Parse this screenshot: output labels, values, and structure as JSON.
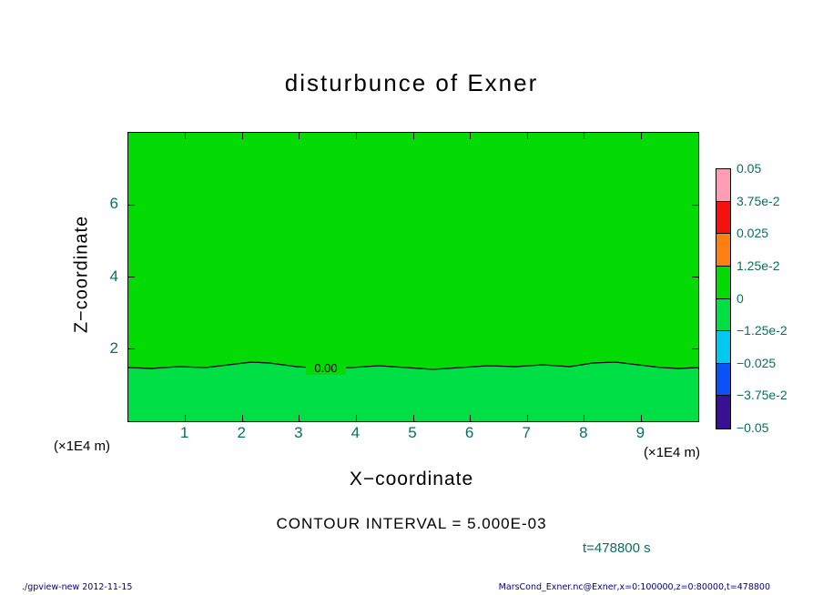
{
  "title": "disturbunce of Exner",
  "plot": {
    "x_axis": {
      "label": "X−coordinate",
      "unit_left": "(×1E4 m)",
      "unit_right": "(×1E4 m)",
      "ticks": [
        "1",
        "2",
        "3",
        "4",
        "5",
        "6",
        "7",
        "8",
        "9"
      ]
    },
    "y_axis": {
      "label": "Z−coordinate",
      "ticks": [
        "2",
        "4",
        "6"
      ]
    },
    "contour_label": "0.00",
    "colors": {
      "upper_region": "#04da04",
      "lower_region": "#00df45",
      "contour_line": "#000000"
    }
  },
  "colorbar": {
    "labels": [
      "0.05",
      "3.75e-2",
      "0.025",
      "1.25e-2",
      "0",
      "−1.25e-2",
      "−0.025",
      "−3.75e-2",
      "−0.05"
    ],
    "colors": [
      "#ff9db6",
      "#f8120e",
      "#ff7f12",
      "#04da04",
      "#00df45",
      "#00c8f0",
      "#0a52f8",
      "#381094"
    ]
  },
  "annotations": {
    "contour_interval": "CONTOUR INTERVAL = 5.000E-03",
    "time": "t=478800 s"
  },
  "footer": {
    "left": "./gpview-new  2012-11-15",
    "right": "MarsCond_Exner.nc@Exner,x=0:100000,z=0:80000,t=478800"
  },
  "text_colors": {
    "tick_labels": "#0a6e60",
    "footer": "#00008b",
    "main": "#000000"
  },
  "chart_data": {
    "type": "contour",
    "title": "disturbunce of Exner",
    "xlabel": "X−coordinate (×1E4 m)",
    "ylabel": "Z−coordinate (×1E4 m)",
    "xlim": [
      0,
      10
    ],
    "ylim": [
      0,
      8
    ],
    "x_ticks": [
      1,
      2,
      3,
      4,
      5,
      6,
      7,
      8,
      9
    ],
    "y_ticks": [
      2,
      4,
      6
    ],
    "contour_interval": 0.005,
    "time_s": 478800,
    "visible_contours": [
      {
        "level": 0.0,
        "label": "0.00",
        "approx_height_1e4m": 1.55,
        "shape": "nearly flat wavy line spanning full x range"
      }
    ],
    "shading": {
      "above_zero_contour": {
        "value_band": [
          0,
          0.0125
        ],
        "color": "#04da04"
      },
      "below_zero_contour": {
        "value_band": [
          -0.0125,
          0
        ],
        "color": "#00df45"
      }
    },
    "colorbar_levels": [
      0.05,
      0.0375,
      0.025,
      0.0125,
      0,
      -0.0125,
      -0.025,
      -0.0375,
      -0.05
    ],
    "legend_position": "right"
  }
}
